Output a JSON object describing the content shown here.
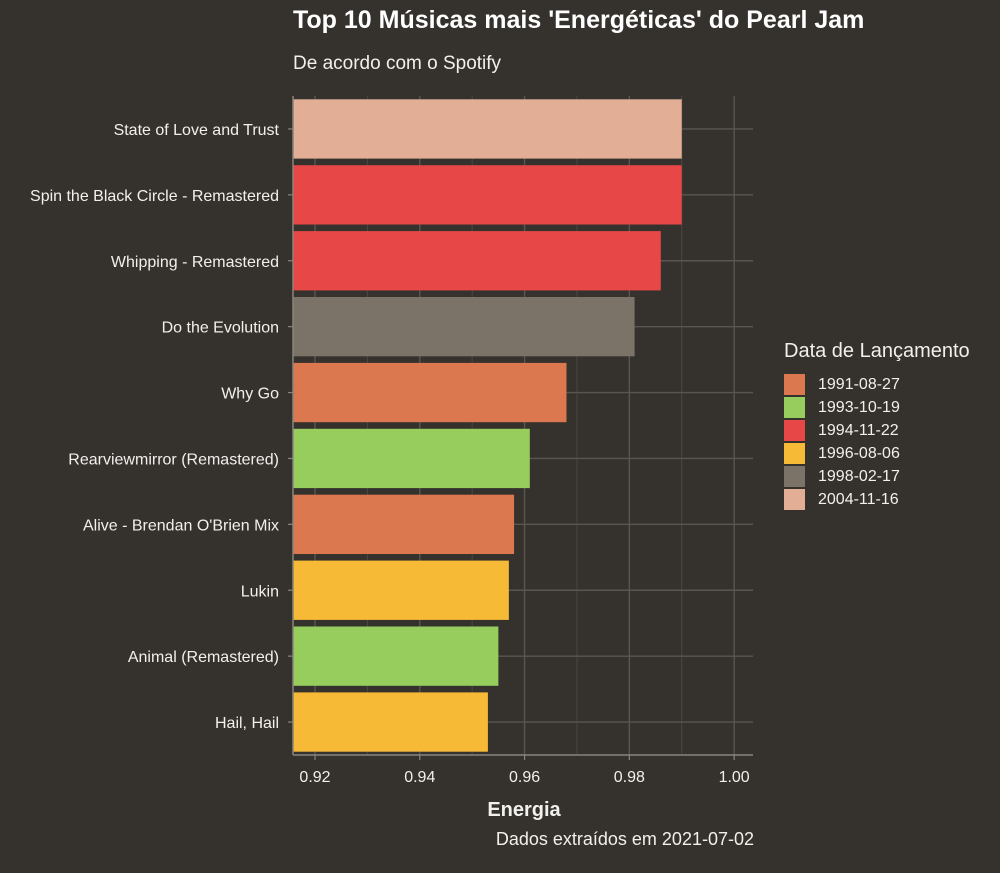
{
  "chart_data": {
    "type": "bar",
    "orientation": "horizontal",
    "title": "Top 10 Músicas mais 'Energéticas' do Pearl Jam",
    "subtitle": "De acordo com o Spotify",
    "xlabel": "Energia",
    "ylabel": "",
    "caption": "Dados extraídos em 2021-07-02",
    "xlim": [
      0.9158,
      1.0036
    ],
    "x_ticks": [
      0.92,
      0.94,
      0.96,
      0.98,
      1.0
    ],
    "x_tick_labels": [
      "0.92",
      "0.94",
      "0.96",
      "0.98",
      "1.00"
    ],
    "grid": true,
    "legend": {
      "title": "Data de Lançamento",
      "position": "right",
      "entries": [
        {
          "label": "1991-08-27",
          "color": "#dc7850"
        },
        {
          "label": "1993-10-19",
          "color": "#96cd5d"
        },
        {
          "label": "1994-11-22",
          "color": "#e84748"
        },
        {
          "label": "1996-08-06",
          "color": "#f6ba37"
        },
        {
          "label": "1998-02-17",
          "color": "#7b7368"
        },
        {
          "label": "2004-11-16",
          "color": "#e2ae96"
        }
      ]
    },
    "categories": [
      "State of Love and Trust",
      "Spin the Black Circle - Remastered",
      "Whipping - Remastered",
      "Do the Evolution",
      "Why Go",
      "Rearviewmirror (Remastered)",
      "Alive - Brendan O'Brien Mix",
      "Lukin",
      "Animal (Remastered)",
      "Hail, Hail"
    ],
    "values": [
      0.99,
      0.99,
      0.986,
      0.981,
      0.968,
      0.961,
      0.958,
      0.957,
      0.955,
      0.953
    ],
    "release_dates": [
      "2004-11-16",
      "1994-11-22",
      "1994-11-22",
      "1998-02-17",
      "1991-08-27",
      "1993-10-19",
      "1991-08-27",
      "1996-08-06",
      "1993-10-19",
      "1996-08-06"
    ]
  },
  "theme": {
    "background": "#35312d",
    "grid_color": "#5a554f",
    "axis_color": "#8a847c",
    "text_color": "#f2f0ed"
  }
}
